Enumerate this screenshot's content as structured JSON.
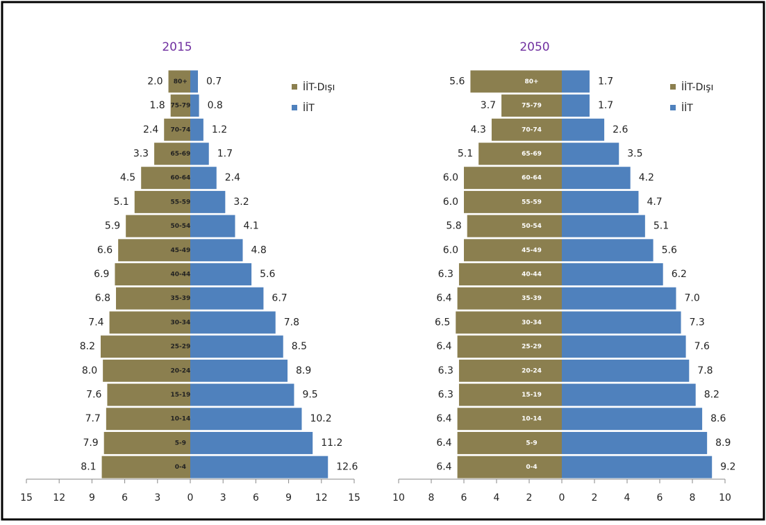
{
  "chart_data": [
    {
      "type": "pyramid",
      "title": "2015",
      "categories": [
        "0-4",
        "5-9",
        "10-14",
        "15-19",
        "20-24",
        "25-29",
        "30-34",
        "35-39",
        "40-44",
        "45-49",
        "50-54",
        "55-59",
        "60-64",
        "65-69",
        "70-74",
        "75-79",
        "80+"
      ],
      "series": [
        {
          "name": "İİT-Dışı",
          "color": "#8b7f4f",
          "side": "left",
          "values": [
            8.1,
            7.9,
            7.7,
            7.6,
            8.0,
            8.2,
            7.4,
            6.8,
            6.9,
            6.6,
            5.9,
            5.1,
            4.5,
            3.3,
            2.4,
            1.8,
            2.0
          ],
          "value_labels": [
            "8.1",
            "7.9",
            "7.7",
            "7.6",
            "8.0",
            "8.2",
            "7.4",
            "6.8",
            "6.9",
            "6.6",
            "5.9",
            "5.1",
            "4.5",
            "3.3",
            "2.4",
            "1.8",
            "2.0"
          ]
        },
        {
          "name": "İİT",
          "color": "#4f81bd",
          "side": "right",
          "values": [
            12.6,
            11.2,
            10.2,
            9.5,
            8.9,
            8.5,
            7.8,
            6.7,
            5.6,
            4.8,
            4.1,
            3.2,
            2.4,
            1.7,
            1.2,
            0.8,
            0.7
          ],
          "value_labels": [
            "12.6",
            "11.2",
            "10.2",
            "9.5",
            "8.9",
            "8.5",
            "7.8",
            "6.7",
            "5.6",
            "4.8",
            "4.1",
            "3.2",
            "2.4",
            "1.7",
            "1.2",
            "0.8",
            "0.7"
          ]
        }
      ],
      "xlim": [
        -15,
        15
      ],
      "xticks": [
        {
          "value": -15,
          "label": "15"
        },
        {
          "value": -12,
          "label": "12"
        },
        {
          "value": -9,
          "label": "9"
        },
        {
          "value": -6,
          "label": "6"
        },
        {
          "value": -3,
          "label": "3"
        },
        0,
        3,
        6,
        9,
        12,
        15
      ]
    },
    {
      "type": "pyramid",
      "title": "2050",
      "categories": [
        "0-4",
        "5-9",
        "10-14",
        "15-19",
        "20-24",
        "25-29",
        "30-34",
        "35-39",
        "40-44",
        "45-49",
        "50-54",
        "55-59",
        "60-64",
        "65-69",
        "70-74",
        "75-79",
        "80+"
      ],
      "series": [
        {
          "name": "İİT-Dışı",
          "color": "#8b7f4f",
          "side": "left",
          "values": [
            6.4,
            6.4,
            6.4,
            6.3,
            6.3,
            6.4,
            6.5,
            6.4,
            6.3,
            6.0,
            5.8,
            6.0,
            6.0,
            5.1,
            4.3,
            3.7,
            5.6
          ],
          "value_labels": [
            "6.4",
            "6.4",
            "6.4",
            "6.3",
            "6.3",
            "6.4",
            "6.5",
            "6.4",
            "6.3",
            "6.0",
            "5.8",
            "6.0",
            "6.0",
            "5.1",
            "4.3",
            "3.7",
            "5.6"
          ]
        },
        {
          "name": "İİT",
          "color": "#4f81bd",
          "side": "right",
          "values": [
            9.2,
            8.9,
            8.6,
            8.2,
            7.8,
            7.6,
            7.3,
            7.0,
            6.2,
            5.6,
            5.1,
            4.7,
            4.2,
            3.5,
            2.6,
            1.7,
            1.7
          ],
          "value_labels": [
            "9.2",
            "8.9",
            "8.6",
            "8.2",
            "7.8",
            "7.6",
            "7.3",
            "7.0",
            "6.2",
            "5.6",
            "5.1",
            "4.7",
            "4.2",
            "3.5",
            "2.6",
            "1.7",
            "1.7"
          ]
        }
      ],
      "xlim": [
        -10,
        10
      ],
      "xticks": [
        {
          "value": -10,
          "label": "10"
        },
        {
          "value": -8,
          "label": "8"
        },
        {
          "value": -6,
          "label": "6"
        },
        {
          "value": -4,
          "label": "4"
        },
        {
          "value": -2,
          "label": "2"
        },
        0,
        2,
        4,
        6,
        8,
        10
      ]
    }
  ]
}
